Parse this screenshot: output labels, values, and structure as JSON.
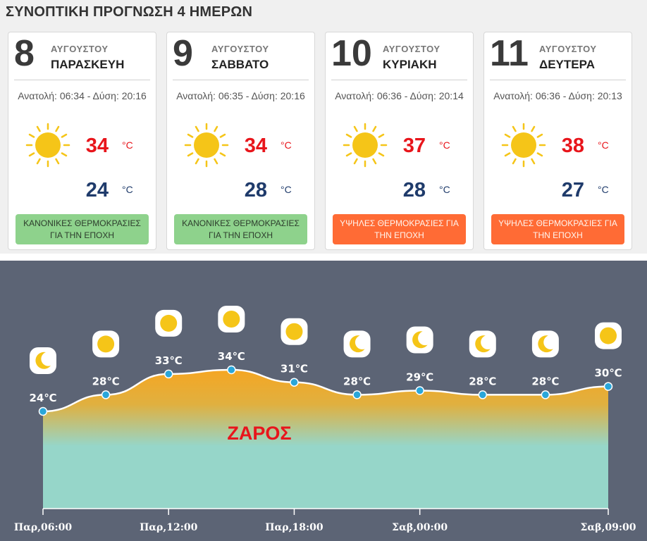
{
  "header": {
    "title": "ΣΥΝΟΠΤΙΚΗ ΠΡΟΓΝΩΣΗ 4 ΗΜΕΡΩΝ"
  },
  "days": [
    {
      "day": "8",
      "month": "ΑΥΓΟΥΣΤΟΥ",
      "weekday": "ΠΑΡΑΣΚΕΥΗ",
      "sun": "Ανατολή: 06:34 - Δύση: 20:16",
      "tmax": "34",
      "tmin": "24",
      "unit": "°C",
      "badge": "ΚΑΝΟΝΙΚΕΣ ΘΕΡΜΟΚΡΑΣΙΕΣ ΓΙΑ ΤΗΝ ΕΠΟΧΗ",
      "badge_type": "normal",
      "icon": "sun-icon"
    },
    {
      "day": "9",
      "month": "ΑΥΓΟΥΣΤΟΥ",
      "weekday": "ΣΑΒΒΑΤΟ",
      "sun": "Ανατολή: 06:35 - Δύση: 20:16",
      "tmax": "34",
      "tmin": "28",
      "unit": "°C",
      "badge": "ΚΑΝΟΝΙΚΕΣ ΘΕΡΜΟΚΡΑΣΙΕΣ ΓΙΑ ΤΗΝ ΕΠΟΧΗ",
      "badge_type": "normal",
      "icon": "sun-icon"
    },
    {
      "day": "10",
      "month": "ΑΥΓΟΥΣΤΟΥ",
      "weekday": "ΚΥΡΙΑΚΗ",
      "sun": "Ανατολή: 06:36 - Δύση: 20:14",
      "tmax": "37",
      "tmin": "28",
      "unit": "°C",
      "badge": "ΥΨΗΛΕΣ ΘΕΡΜΟΚΡΑΣΙΕΣ ΓΙΑ ΤΗΝ ΕΠΟΧΗ",
      "badge_type": "high",
      "icon": "sun-icon"
    },
    {
      "day": "11",
      "month": "ΑΥΓΟΥΣΤΟΥ",
      "weekday": "ΔΕΥΤΕΡΑ",
      "sun": "Ανατολή: 06:36 - Δύση: 20:13",
      "tmax": "38",
      "tmin": "27",
      "unit": "°C",
      "badge": "ΥΨΗΛΕΣ ΘΕΡΜΟΚΡΑΣΙΕΣ ΓΙΑ ΤΗΝ ΕΠΟΧΗ",
      "badge_type": "high",
      "icon": "sun-icon"
    }
  ],
  "colors": {
    "tmax": "#e8151b",
    "tmin": "#1f3b6b",
    "badge_normal": "#8ed28c",
    "badge_high": "#ff6b35",
    "chart_bg": "#5c6475",
    "area_top": "#f5a623",
    "area_bottom": "#96d6c9",
    "point": "#2aa6d9",
    "icon_bg": "#ffffff",
    "icon_fill": "#f5c518"
  },
  "chart_data": {
    "type": "area",
    "x": [
      "Παρ,06:00",
      "Παρ,09:00",
      "Παρ,12:00",
      "Παρ,15:00",
      "Παρ,18:00",
      "Παρ,21:00",
      "Σαβ,00:00",
      "Σαβ,03:00",
      "Σαβ,06:00",
      "Σαβ,09:00"
    ],
    "values": [
      24,
      28,
      33,
      34,
      31,
      28,
      29,
      28,
      28,
      30
    ],
    "labels": [
      "24℃",
      "28℃",
      "33℃",
      "34℃",
      "31℃",
      "28℃",
      "29℃",
      "28℃",
      "28℃",
      "30℃"
    ],
    "icons": [
      "moon-icon",
      "sun-icon",
      "sun-icon",
      "sun-icon",
      "sun-icon",
      "moon-icon",
      "moon-icon",
      "moon-icon",
      "moon-icon",
      "sun-icon"
    ],
    "tick_labels": [
      "Παρ,06:00",
      "Παρ,12:00",
      "Παρ,18:00",
      "Σαβ,00:00",
      "Σαβ,09:00"
    ],
    "annotation": "ΖΑΡΟΣ",
    "ylim": [
      10,
      38
    ],
    "grid": false,
    "legend": "none"
  }
}
